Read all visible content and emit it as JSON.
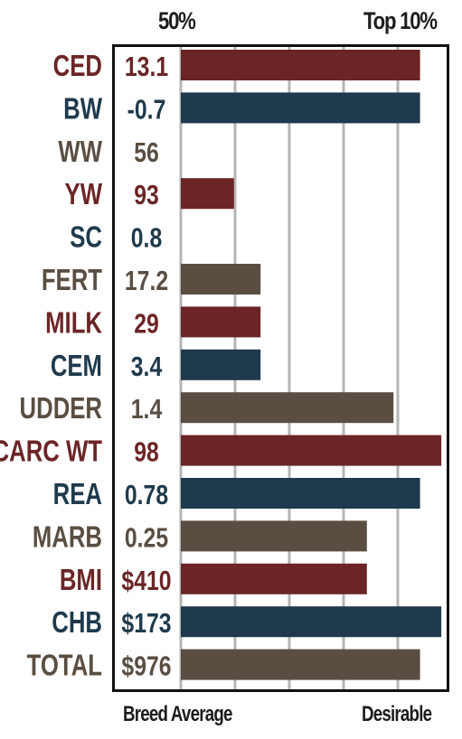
{
  "header": {
    "left": "50%",
    "right": "Top 10%"
  },
  "footer": {
    "left": "Breed Average",
    "right": "Desirable"
  },
  "colors": {
    "red": "#6b2526",
    "navy": "#1f3a4c",
    "brown": "#5a4e42",
    "grid": "#b5b5b5"
  },
  "chart_data": {
    "type": "bar",
    "orientation": "horizontal",
    "categories": [
      "CED",
      "BW",
      "WW",
      "YW",
      "SC",
      "FERT",
      "MILK",
      "CEM",
      "UDDER",
      "CARC WT",
      "REA",
      "MARB",
      "BMI",
      "CHB",
      "TOTAL"
    ],
    "value_labels": [
      "13.1",
      "-0.7",
      "56",
      "93",
      "0.8",
      "17.2",
      "29",
      "3.4",
      "1.4",
      "98",
      "0.78",
      "0.25",
      "$410",
      "$173",
      "$976"
    ],
    "bar_levels": [
      0.9,
      0.9,
      0,
      0.2,
      0,
      0.3,
      0.3,
      0.3,
      0.8,
      0.98,
      0.9,
      0.7,
      0.7,
      0.98,
      0.9
    ],
    "row_colors": [
      "red",
      "navy",
      "brown",
      "red",
      "navy",
      "brown",
      "red",
      "navy",
      "brown",
      "red",
      "navy",
      "brown",
      "red",
      "navy",
      "brown"
    ],
    "x_axis": {
      "min_label": "Breed Average",
      "max_label": "Desirable",
      "top_min_label": "50%",
      "top_max_label": "Top 10%"
    },
    "grid": true
  }
}
